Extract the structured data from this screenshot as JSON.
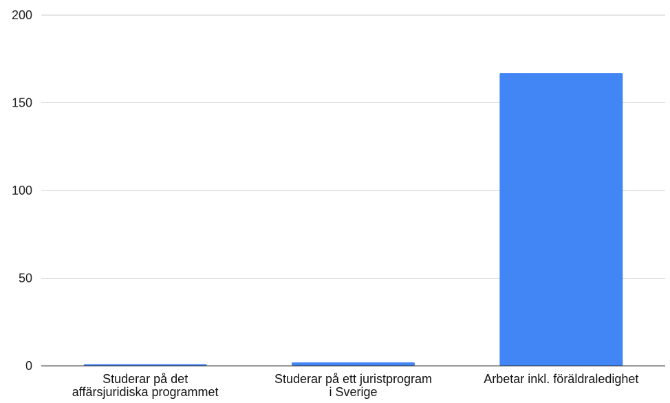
{
  "chart_data": {
    "type": "bar",
    "categories": [
      [
        "Studerar på det",
        "affärsjuridiska programmet"
      ],
      [
        "Studerar på ett juristprogram",
        "i Sverige"
      ],
      [
        "Arbetar inkl. föräldraledighet"
      ]
    ],
    "values": [
      1,
      2,
      167
    ],
    "ylim": [
      0,
      200
    ],
    "yticks": [
      "0",
      "50",
      "100",
      "150",
      "200"
    ],
    "grid": true,
    "legend": "none",
    "colors": {
      "bar": "#4285f4",
      "grid": "#cccccc",
      "axis": "#333333"
    }
  }
}
